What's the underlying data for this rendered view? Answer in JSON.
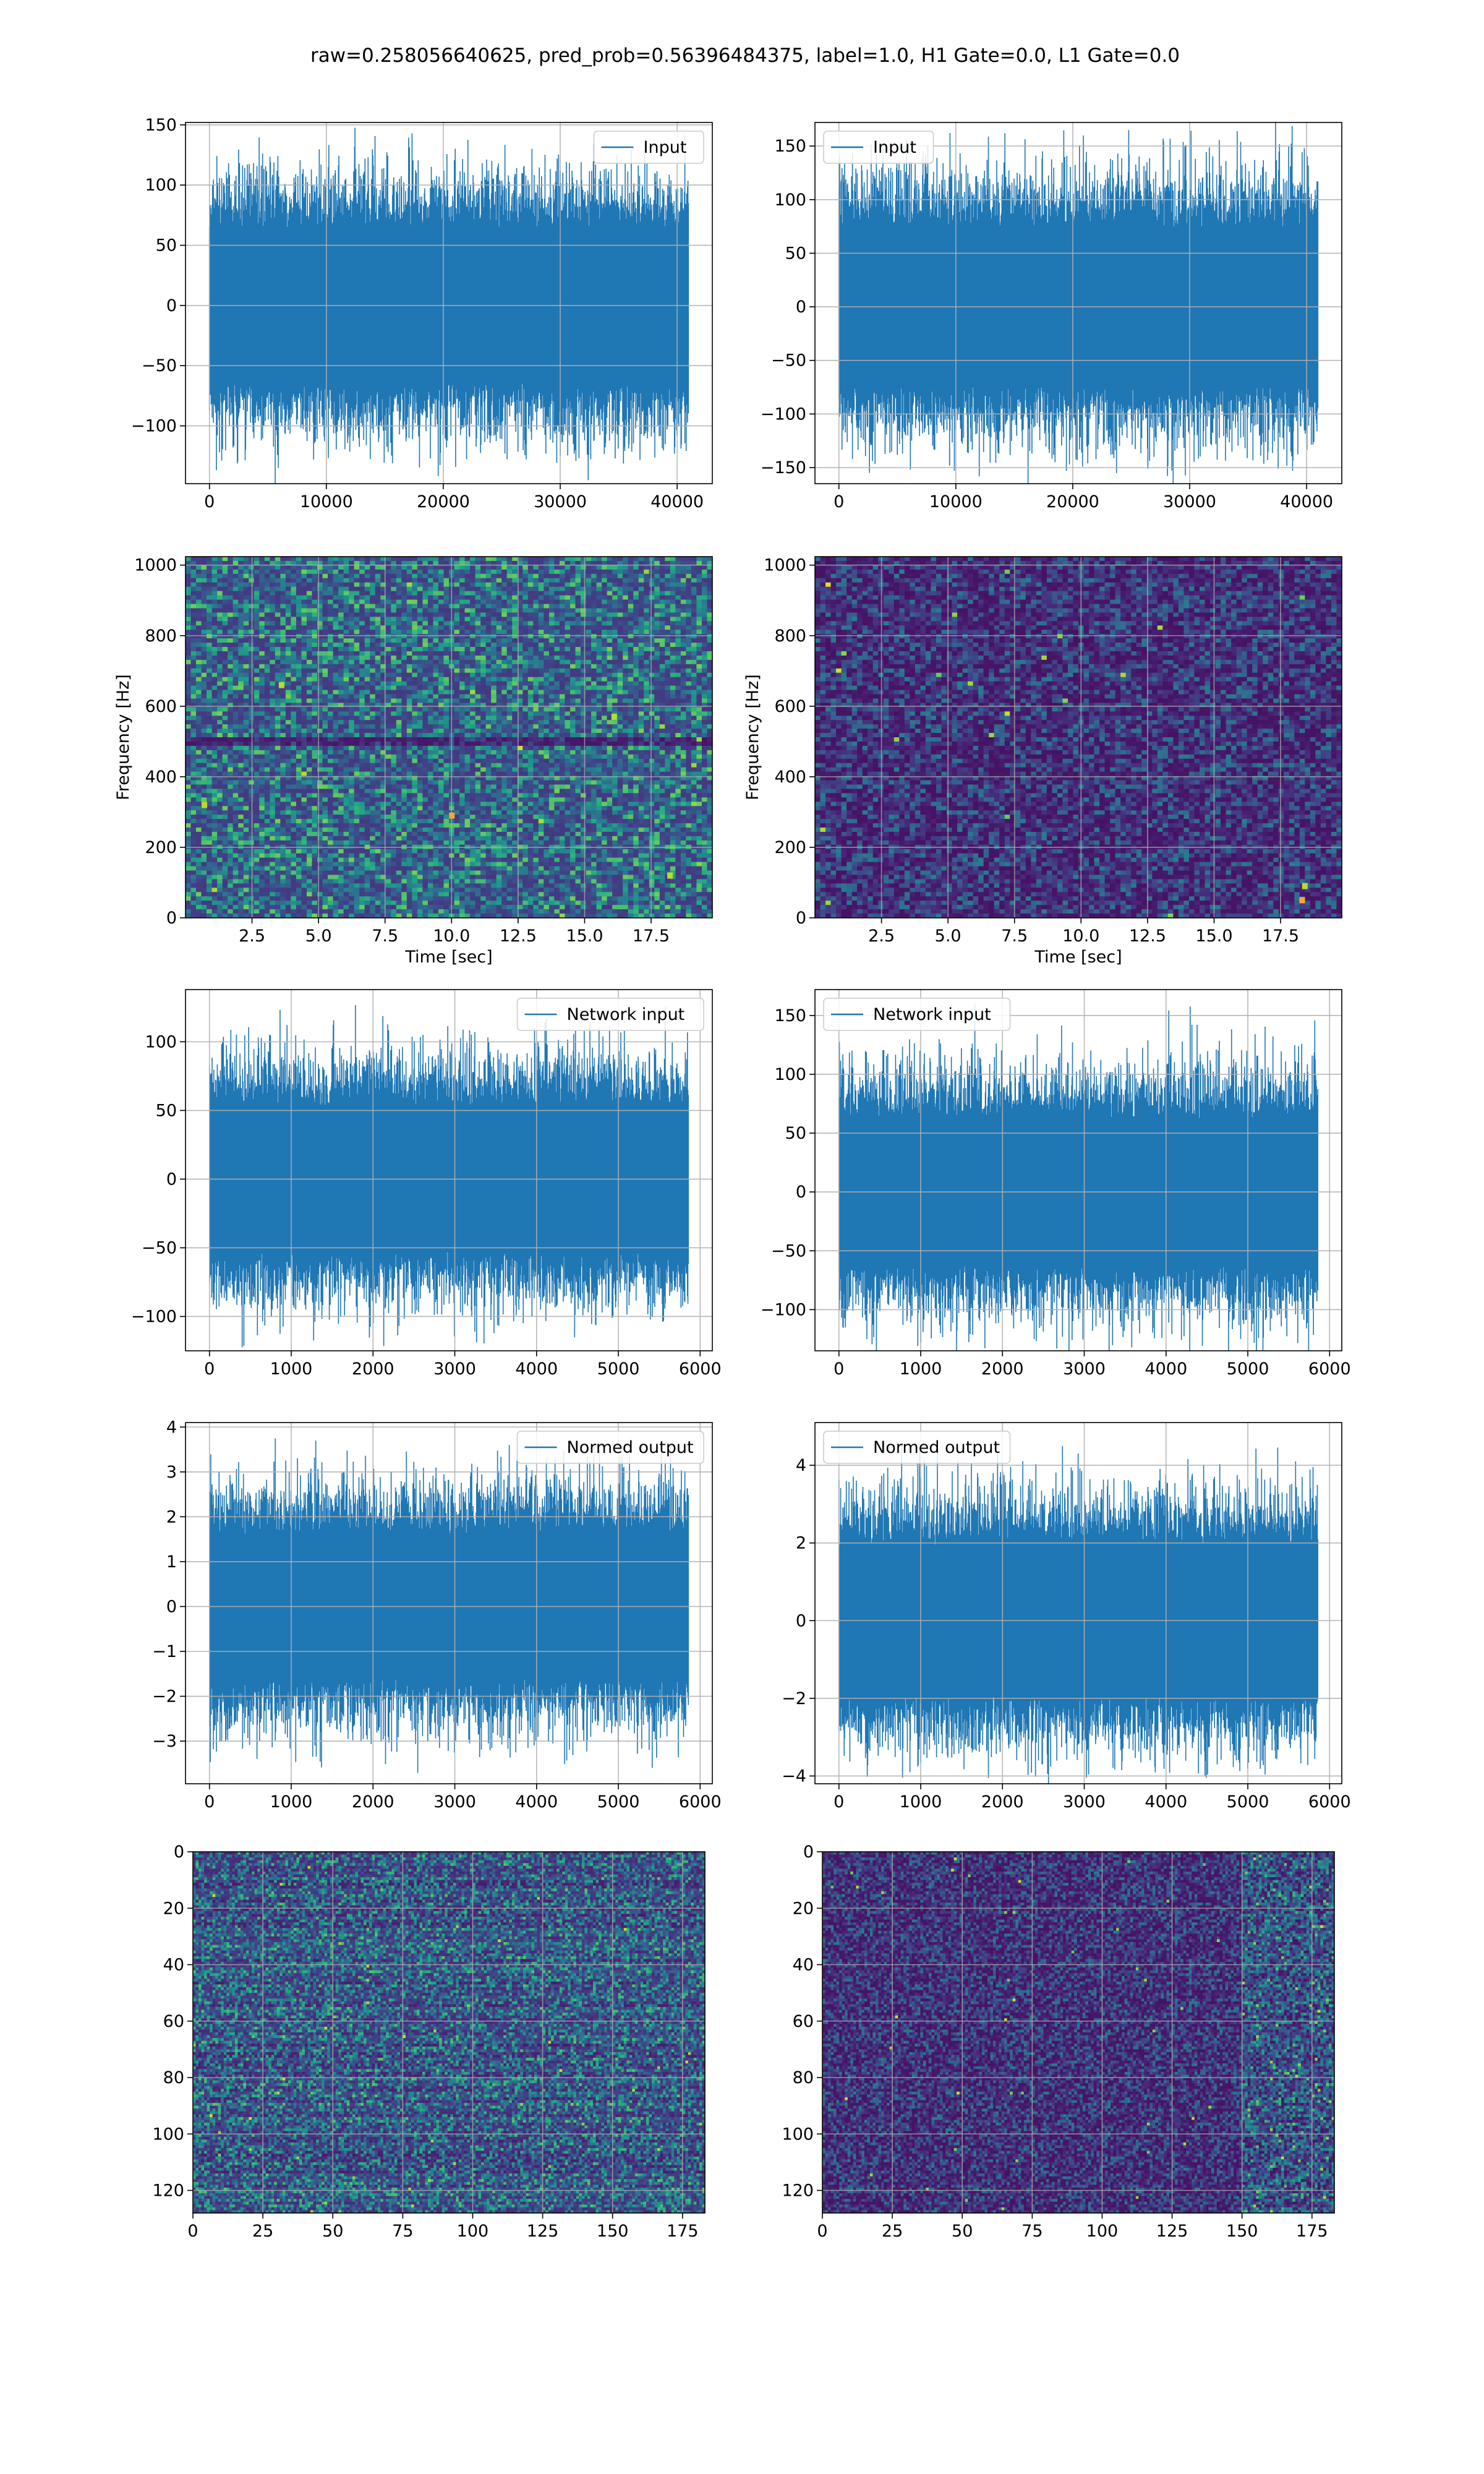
{
  "figure": {
    "title": "raw=0.258056640625, pred_prob=0.56396484375, label=1.0, H1 Gate=0.0, L1 Gate=0.0"
  },
  "colors": {
    "line": "#1f77b4",
    "grid": "#b0b0b0",
    "viridis": [
      "#440154",
      "#482878",
      "#3e4989",
      "#31688e",
      "#26828e",
      "#1f9e89",
      "#35b779",
      "#6ece58",
      "#b5de2b",
      "#fde725"
    ]
  },
  "chart_data": [
    {
      "id": "h1-input",
      "type": "line",
      "legend": "Input",
      "legend_loc": "upper right",
      "x_range": [
        0,
        40960
      ],
      "amplitude": 28,
      "peak": 130,
      "xlim": [
        -2048,
        43008
      ],
      "ylim": [
        -148,
        152
      ],
      "xticks": [
        0,
        10000,
        20000,
        30000,
        40000
      ],
      "xticklabels": [
        "0",
        "10000",
        "20000",
        "30000",
        "40000"
      ],
      "yticks": [
        -100,
        -50,
        0,
        50,
        100,
        150
      ],
      "yticklabels": [
        "−100",
        "−50",
        "0",
        "50",
        "100",
        "150"
      ],
      "xlabel": "",
      "ylabel": ""
    },
    {
      "id": "l1-input",
      "type": "line",
      "legend": "Input",
      "legend_loc": "upper left",
      "x_range": [
        0,
        40960
      ],
      "amplitude": 32,
      "peak": 165,
      "xlim": [
        -2048,
        43008
      ],
      "ylim": [
        -165,
        172
      ],
      "xticks": [
        0,
        10000,
        20000,
        30000,
        40000
      ],
      "xticklabels": [
        "0",
        "10000",
        "20000",
        "30000",
        "40000"
      ],
      "yticks": [
        -150,
        -100,
        -50,
        0,
        50,
        100,
        150
      ],
      "yticklabels": [
        "−150",
        "−100",
        "−50",
        "0",
        "50",
        "100",
        "150"
      ],
      "xlabel": "",
      "ylabel": ""
    },
    {
      "id": "h1-spectrogram",
      "type": "heatmap",
      "intensity": "bright",
      "band_row_hz": 500,
      "hotspots": [
        [
          10.0,
          290
        ],
        [
          18.2,
          120
        ],
        [
          3.6,
          660
        ],
        [
          16.1,
          570
        ],
        [
          0.7,
          320
        ]
      ],
      "xlim": [
        0,
        19.8
      ],
      "ylim": [
        0,
        1024
      ],
      "xticks": [
        2.5,
        5.0,
        7.5,
        10.0,
        12.5,
        15.0,
        17.5
      ],
      "xticklabels": [
        "2.5",
        "5.0",
        "7.5",
        "10.0",
        "12.5",
        "15.0",
        "17.5"
      ],
      "yticks": [
        0,
        200,
        400,
        600,
        800,
        1000
      ],
      "yticklabels": [
        "0",
        "200",
        "400",
        "600",
        "800",
        "1000"
      ],
      "xlabel": "Time [sec]",
      "ylabel": "Frequency [Hz]"
    },
    {
      "id": "l1-spectrogram",
      "type": "heatmap",
      "intensity": "dark",
      "band_row_hz": null,
      "hotspots": [
        [
          18.3,
          50
        ],
        [
          18.4,
          90
        ]
      ],
      "xlim": [
        0,
        19.8
      ],
      "ylim": [
        0,
        1024
      ],
      "xticks": [
        2.5,
        5.0,
        7.5,
        10.0,
        12.5,
        15.0,
        17.5
      ],
      "xticklabels": [
        "2.5",
        "5.0",
        "7.5",
        "10.0",
        "12.5",
        "15.0",
        "17.5"
      ],
      "yticks": [
        0,
        200,
        400,
        600,
        800,
        1000
      ],
      "yticklabels": [
        "0",
        "200",
        "400",
        "600",
        "800",
        "1000"
      ],
      "xlabel": "Time [sec]",
      "ylabel": "Frequency [Hz]"
    },
    {
      "id": "h1-network-input",
      "type": "line",
      "legend": "Network input",
      "legend_loc": "upper right",
      "x_range": [
        0,
        5856
      ],
      "amplitude": 23,
      "peak": 128,
      "xlim": [
        -293,
        6149
      ],
      "ylim": [
        -125,
        138
      ],
      "xticks": [
        0,
        1000,
        2000,
        3000,
        4000,
        5000,
        6000
      ],
      "xticklabels": [
        "0",
        "1000",
        "2000",
        "3000",
        "4000",
        "5000",
        "6000"
      ],
      "yticks": [
        -100,
        -50,
        0,
        50,
        100
      ],
      "yticklabels": [
        "−100",
        "−50",
        "0",
        "50",
        "100"
      ],
      "xlabel": "",
      "ylabel": ""
    },
    {
      "id": "l1-network-input",
      "type": "line",
      "legend": "Network input",
      "legend_loc": "upper left",
      "x_range": [
        0,
        5856
      ],
      "amplitude": 27,
      "peak": 160,
      "xlim": [
        -293,
        6149
      ],
      "ylim": [
        -135,
        172
      ],
      "xticks": [
        0,
        1000,
        2000,
        3000,
        4000,
        5000,
        6000
      ],
      "xticklabels": [
        "0",
        "1000",
        "2000",
        "3000",
        "4000",
        "5000",
        "6000"
      ],
      "yticks": [
        -100,
        -50,
        0,
        50,
        100,
        150
      ],
      "yticklabels": [
        "−100",
        "−50",
        "0",
        "50",
        "100",
        "150"
      ],
      "xlabel": "",
      "ylabel": ""
    },
    {
      "id": "h1-normed-output",
      "type": "line",
      "legend": "Normed output",
      "legend_loc": "upper right",
      "x_range": [
        0,
        5856
      ],
      "amplitude": 0.7,
      "peak": 3.7,
      "xlim": [
        -293,
        6149
      ],
      "ylim": [
        -3.95,
        4.1
      ],
      "xticks": [
        0,
        1000,
        2000,
        3000,
        4000,
        5000,
        6000
      ],
      "xticklabels": [
        "0",
        "1000",
        "2000",
        "3000",
        "4000",
        "5000",
        "6000"
      ],
      "yticks": [
        -3,
        -2,
        -1,
        0,
        1,
        2,
        3,
        4
      ],
      "yticklabels": [
        "−3",
        "−2",
        "−1",
        "0",
        "1",
        "2",
        "3",
        "4"
      ],
      "xlabel": "",
      "ylabel": ""
    },
    {
      "id": "l1-normed-output",
      "type": "line",
      "legend": "Normed output",
      "legend_loc": "upper left",
      "x_range": [
        0,
        5856
      ],
      "amplitude": 0.85,
      "peak": 4.6,
      "xlim": [
        -293,
        6149
      ],
      "ylim": [
        -4.2,
        5.1
      ],
      "xticks": [
        0,
        1000,
        2000,
        3000,
        4000,
        5000,
        6000
      ],
      "xticklabels": [
        "0",
        "1000",
        "2000",
        "3000",
        "4000",
        "5000",
        "6000"
      ],
      "yticks": [
        -4,
        -2,
        0,
        2,
        4
      ],
      "yticklabels": [
        "−4",
        "−2",
        "0",
        "2",
        "4"
      ],
      "xlabel": "",
      "ylabel": ""
    },
    {
      "id": "h1-image",
      "type": "heatmap",
      "intensity": "medium",
      "rows": 128,
      "cols": 183,
      "hot_cols": [],
      "y_inverted": true,
      "xlim": [
        0,
        183
      ],
      "ylim": [
        0,
        128
      ],
      "xticks": [
        0,
        25,
        50,
        75,
        100,
        125,
        150,
        175
      ],
      "xticklabels": [
        "0",
        "25",
        "50",
        "75",
        "100",
        "125",
        "150",
        "175"
      ],
      "yticks": [
        0,
        20,
        40,
        60,
        80,
        100,
        120
      ],
      "yticklabels": [
        "0",
        "20",
        "40",
        "60",
        "80",
        "100",
        "120"
      ],
      "xlabel": "",
      "ylabel": ""
    },
    {
      "id": "l1-image",
      "type": "heatmap",
      "intensity": "dark",
      "rows": 128,
      "cols": 183,
      "hot_cols": [
        150,
        183
      ],
      "y_inverted": true,
      "xlim": [
        0,
        183
      ],
      "ylim": [
        0,
        128
      ],
      "xticks": [
        0,
        25,
        50,
        75,
        100,
        125,
        150,
        175
      ],
      "xticklabels": [
        "0",
        "25",
        "50",
        "75",
        "100",
        "125",
        "150",
        "175"
      ],
      "yticks": [
        0,
        20,
        40,
        60,
        80,
        100,
        120
      ],
      "yticklabels": [
        "0",
        "20",
        "40",
        "60",
        "80",
        "100",
        "120"
      ],
      "xlabel": "",
      "ylabel": ""
    }
  ]
}
